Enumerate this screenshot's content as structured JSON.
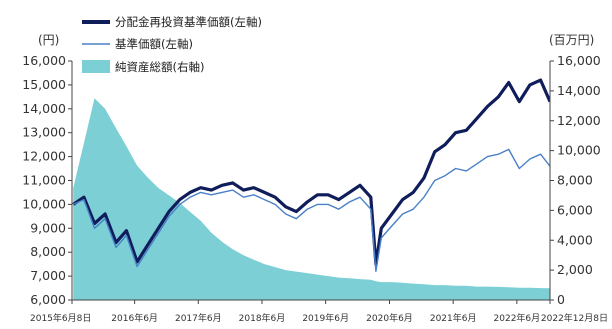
{
  "chart_data": {
    "type": "line",
    "left_unit": "(円)",
    "right_unit": "(百万円)",
    "left_ylim": [
      6000,
      16000
    ],
    "right_ylim": [
      0,
      16000
    ],
    "left_ticks": [
      "6,000",
      "7,000",
      "8,000",
      "9,000",
      "10,000",
      "11,000",
      "12,000",
      "13,000",
      "14,000",
      "15,000",
      "16,000"
    ],
    "right_ticks": [
      "0",
      "2,000",
      "4,000",
      "6,000",
      "8,000",
      "10,000",
      "12,000",
      "14,000",
      "16,000"
    ],
    "x_ticks": [
      "2015年6月8日",
      "2016年6月",
      "2017年6月",
      "2018年6月",
      "2019年6月",
      "2020年6月",
      "2021年6月",
      "2022年6月",
      "2022年12月8日"
    ],
    "grid": false,
    "legend_position": "top-left",
    "colors": {
      "reinvested": "#0f1d5a",
      "base_price": "#4a80c8",
      "net_assets": "#7ccfd4"
    },
    "series": [
      {
        "name": "分配金再投資基準価額(左軸)",
        "axis": "left",
        "x": [
          "2015-06",
          "2015-08",
          "2015-10",
          "2015-12",
          "2016-02",
          "2016-04",
          "2016-06",
          "2016-08",
          "2016-10",
          "2016-12",
          "2017-02",
          "2017-04",
          "2017-06",
          "2017-08",
          "2017-10",
          "2017-12",
          "2018-02",
          "2018-04",
          "2018-06",
          "2018-08",
          "2018-10",
          "2018-12",
          "2019-02",
          "2019-04",
          "2019-06",
          "2019-08",
          "2019-10",
          "2019-12",
          "2020-02",
          "2020-03",
          "2020-04",
          "2020-06",
          "2020-08",
          "2020-10",
          "2020-12",
          "2021-02",
          "2021-04",
          "2021-06",
          "2021-08",
          "2021-10",
          "2021-12",
          "2022-02",
          "2022-04",
          "2022-06",
          "2022-08",
          "2022-10",
          "2022-12"
        ],
        "values": [
          10000,
          10300,
          9200,
          9600,
          8400,
          8900,
          7600,
          8300,
          9000,
          9700,
          10200,
          10500,
          10700,
          10600,
          10800,
          10900,
          10600,
          10700,
          10500,
          10300,
          9900,
          9700,
          10100,
          10400,
          10400,
          10200,
          10500,
          10800,
          10300,
          7500,
          9000,
          9600,
          10200,
          10500,
          11100,
          12200,
          12500,
          13000,
          13100,
          13600,
          14100,
          14500,
          15100,
          14300,
          15000,
          15200,
          14300
        ]
      },
      {
        "name": "基準価額(左軸)",
        "axis": "left",
        "x": [
          "2015-06",
          "2015-08",
          "2015-10",
          "2015-12",
          "2016-02",
          "2016-04",
          "2016-06",
          "2016-08",
          "2016-10",
          "2016-12",
          "2017-02",
          "2017-04",
          "2017-06",
          "2017-08",
          "2017-10",
          "2017-12",
          "2018-02",
          "2018-04",
          "2018-06",
          "2018-08",
          "2018-10",
          "2018-12",
          "2019-02",
          "2019-04",
          "2019-06",
          "2019-08",
          "2019-10",
          "2019-12",
          "2020-02",
          "2020-03",
          "2020-04",
          "2020-06",
          "2020-08",
          "2020-10",
          "2020-12",
          "2021-02",
          "2021-04",
          "2021-06",
          "2021-08",
          "2021-10",
          "2021-12",
          "2022-02",
          "2022-04",
          "2022-06",
          "2022-08",
          "2022-10",
          "2022-12"
        ],
        "values": [
          10000,
          10200,
          9000,
          9400,
          8200,
          8700,
          7400,
          8100,
          8800,
          9500,
          10000,
          10300,
          10500,
          10400,
          10500,
          10600,
          10300,
          10400,
          10200,
          10000,
          9600,
          9400,
          9800,
          10000,
          10000,
          9800,
          10100,
          10300,
          9800,
          7200,
          8600,
          9100,
          9600,
          9800,
          10300,
          11000,
          11200,
          11500,
          11400,
          11700,
          12000,
          12100,
          12300,
          11500,
          11900,
          12100,
          11600
        ]
      },
      {
        "name": "純資産総額(右軸)",
        "axis": "right",
        "x": [
          "2015-06",
          "2015-08",
          "2015-10",
          "2015-12",
          "2016-02",
          "2016-04",
          "2016-06",
          "2016-08",
          "2016-10",
          "2016-12",
          "2017-02",
          "2017-04",
          "2017-06",
          "2017-08",
          "2017-10",
          "2017-12",
          "2018-02",
          "2018-04",
          "2018-06",
          "2018-08",
          "2018-10",
          "2018-12",
          "2019-02",
          "2019-04",
          "2019-06",
          "2019-08",
          "2019-10",
          "2019-12",
          "2020-02",
          "2020-03",
          "2020-04",
          "2020-06",
          "2020-08",
          "2020-10",
          "2020-12",
          "2021-02",
          "2021-04",
          "2021-06",
          "2021-08",
          "2021-10",
          "2021-12",
          "2022-02",
          "2022-04",
          "2022-06",
          "2022-08",
          "2022-10",
          "2022-12"
        ],
        "values": [
          7500,
          10500,
          13500,
          12800,
          11500,
          10300,
          9000,
          8200,
          7500,
          7000,
          6500,
          5900,
          5300,
          4500,
          3900,
          3400,
          3000,
          2700,
          2400,
          2200,
          2000,
          1900,
          1800,
          1700,
          1600,
          1500,
          1450,
          1400,
          1350,
          1250,
          1200,
          1200,
          1150,
          1100,
          1050,
          1000,
          1000,
          950,
          950,
          900,
          900,
          880,
          850,
          820,
          820,
          800,
          780
        ]
      }
    ]
  }
}
